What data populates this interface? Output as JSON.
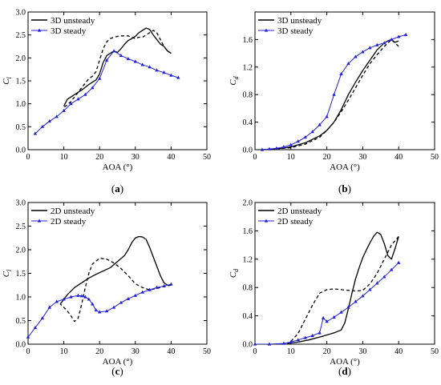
{
  "colors": {
    "unsteady": "#000000",
    "steady": "#1f1fdd",
    "frame": "#000000"
  },
  "chart_data": [
    {
      "type": "line",
      "panel": "a",
      "label_letter": "a",
      "xlabel": "AOA (°)",
      "ylabel_base": "C",
      "ylabel_sub": "l",
      "xlim": [
        0,
        50
      ],
      "ylim": [
        0,
        3.0
      ],
      "xticks": [
        0,
        10,
        20,
        30,
        40,
        50
      ],
      "xtick_labels": [
        "0",
        "10",
        "20",
        "30",
        "40",
        "50"
      ],
      "yticks": [
        0,
        0.5,
        1.0,
        1.5,
        2.0,
        2.5,
        3.0
      ],
      "ytick_labels": [
        "0.0",
        "0.5",
        "1.0",
        "1.5",
        "2.0",
        "2.5",
        "3.0"
      ],
      "legend": {
        "position": "top-left",
        "entries": [
          "3D unsteady",
          "3D steady"
        ]
      },
      "series": [
        {
          "name": "3D unsteady",
          "style": "solid",
          "color_key": "unsteady",
          "x": [
            10,
            11,
            13,
            15,
            17,
            19,
            20,
            21,
            22,
            23,
            24,
            25,
            26,
            27,
            28,
            29,
            30,
            31,
            32,
            33,
            34,
            35,
            36,
            37,
            38,
            39,
            40
          ],
          "y": [
            0.95,
            1.1,
            1.2,
            1.3,
            1.42,
            1.52,
            1.65,
            1.9,
            2.05,
            2.1,
            2.15,
            2.12,
            2.2,
            2.3,
            2.38,
            2.42,
            2.47,
            2.55,
            2.6,
            2.65,
            2.62,
            2.5,
            2.4,
            2.3,
            2.25,
            2.15,
            2.1
          ]
        },
        {
          "name": "",
          "style": "dashed",
          "color_key": "unsteady",
          "x": [
            40,
            39,
            38,
            37,
            36,
            35,
            34,
            33,
            32,
            31,
            30,
            29,
            28,
            27,
            26,
            25,
            24,
            23,
            22,
            21,
            20,
            19,
            18,
            17,
            16,
            15,
            14,
            13,
            12,
            11,
            10
          ],
          "y": [
            2.1,
            2.15,
            2.25,
            2.4,
            2.55,
            2.6,
            2.55,
            2.5,
            2.45,
            2.45,
            2.42,
            2.45,
            2.48,
            2.48,
            2.48,
            2.47,
            2.45,
            2.42,
            2.35,
            2.2,
            1.95,
            1.7,
            1.6,
            1.55,
            1.45,
            1.35,
            1.25,
            1.15,
            1.05,
            0.98,
            0.92
          ]
        },
        {
          "name": "3D steady",
          "style": "solid-marker",
          "color_key": "steady",
          "x": [
            2,
            4,
            6,
            8,
            10,
            12,
            14,
            16,
            18,
            20,
            22,
            24,
            26,
            28,
            30,
            32,
            34,
            36,
            38,
            40,
            42
          ],
          "y": [
            0.35,
            0.5,
            0.62,
            0.72,
            0.85,
            1.0,
            1.1,
            1.2,
            1.35,
            1.55,
            1.95,
            2.15,
            2.05,
            1.98,
            1.92,
            1.85,
            1.8,
            1.73,
            1.68,
            1.62,
            1.57
          ]
        }
      ]
    },
    {
      "type": "line",
      "panel": "b",
      "label_letter": "b",
      "xlabel": "AOA (°)",
      "ylabel_base": "C",
      "ylabel_sub": "d",
      "xlim": [
        0,
        50
      ],
      "ylim": [
        0,
        2.0
      ],
      "xticks": [
        0,
        10,
        20,
        30,
        40,
        50
      ],
      "xtick_labels": [
        "0",
        "10",
        "20",
        "30",
        "40",
        "50"
      ],
      "yticks": [
        0,
        0.4,
        0.8,
        1.2,
        1.6
      ],
      "ytick_labels": [
        "0.0",
        "0.4",
        "0.8",
        "1.2",
        "1.6"
      ],
      "legend": {
        "position": "top-left",
        "entries": [
          "3D unsteady",
          "3D steady"
        ]
      },
      "series": [
        {
          "name": "3D unsteady",
          "style": "solid",
          "color_key": "unsteady",
          "x": [
            2,
            6,
            10,
            14,
            18,
            20,
            22,
            24,
            26,
            28,
            30,
            32,
            34,
            36,
            37,
            38,
            39,
            40
          ],
          "y": [
            0.0,
            0.01,
            0.04,
            0.1,
            0.2,
            0.28,
            0.4,
            0.58,
            0.8,
            0.98,
            1.15,
            1.3,
            1.45,
            1.55,
            1.58,
            1.6,
            1.56,
            1.58
          ]
        },
        {
          "name": "",
          "style": "dashed",
          "color_key": "unsteady",
          "x": [
            40,
            39,
            38,
            37,
            36,
            34,
            32,
            30,
            28,
            26,
            24,
            22,
            20,
            18,
            14,
            10,
            6,
            2
          ],
          "y": [
            1.5,
            1.55,
            1.6,
            1.55,
            1.5,
            1.38,
            1.25,
            1.08,
            0.9,
            0.72,
            0.55,
            0.4,
            0.28,
            0.18,
            0.08,
            0.03,
            0.01,
            0.0
          ]
        },
        {
          "name": "3D steady",
          "style": "solid-marker",
          "color_key": "steady",
          "x": [
            2,
            4,
            6,
            8,
            10,
            12,
            14,
            16,
            18,
            20,
            22,
            24,
            26,
            28,
            30,
            32,
            34,
            36,
            38,
            40,
            42
          ],
          "y": [
            0.0,
            0.01,
            0.02,
            0.04,
            0.07,
            0.12,
            0.18,
            0.26,
            0.36,
            0.48,
            0.8,
            1.1,
            1.25,
            1.35,
            1.42,
            1.48,
            1.52,
            1.55,
            1.6,
            1.64,
            1.67
          ]
        }
      ]
    },
    {
      "type": "line",
      "panel": "c",
      "label_letter": "c",
      "xlabel": "AOA (°)",
      "ylabel_base": "C",
      "ylabel_sub": "l",
      "xlim": [
        0,
        50
      ],
      "ylim": [
        0,
        3.0
      ],
      "xticks": [
        0,
        10,
        20,
        30,
        40,
        50
      ],
      "xtick_labels": [
        "0",
        "10",
        "20",
        "30",
        "40",
        "50"
      ],
      "yticks": [
        0,
        0.5,
        1.0,
        1.5,
        2.0,
        2.5,
        3.0
      ],
      "ytick_labels": [
        "0.0",
        "0.5",
        "1.0",
        "1.5",
        "2.0",
        "2.5",
        "3.0"
      ],
      "legend": {
        "position": "top-left",
        "entries": [
          "2D unsteady",
          "2D steady"
        ]
      },
      "series": [
        {
          "name": "2D unsteady",
          "style": "solid",
          "color_key": "unsteady",
          "x": [
            9,
            11,
            13,
            15,
            17,
            19,
            21,
            23,
            25,
            27,
            28,
            29,
            30,
            31,
            32,
            33,
            34,
            35,
            36,
            37,
            38,
            39,
            40
          ],
          "y": [
            0.85,
            1.05,
            1.2,
            1.3,
            1.4,
            1.48,
            1.55,
            1.62,
            1.75,
            1.88,
            2.0,
            2.15,
            2.25,
            2.28,
            2.27,
            2.22,
            2.05,
            1.85,
            1.65,
            1.45,
            1.3,
            1.25,
            1.25
          ]
        },
        {
          "name": "",
          "style": "dashed",
          "color_key": "unsteady",
          "x": [
            40,
            38,
            36,
            34,
            32,
            30,
            28,
            26,
            24,
            22,
            20,
            18,
            17,
            16,
            15,
            14,
            13,
            12,
            11,
            10,
            9
          ],
          "y": [
            1.25,
            1.22,
            1.18,
            1.15,
            1.2,
            1.28,
            1.45,
            1.6,
            1.72,
            1.8,
            1.82,
            1.7,
            1.5,
            1.2,
            0.85,
            0.55,
            0.48,
            0.6,
            0.7,
            0.78,
            0.85
          ]
        },
        {
          "name": "2D steady",
          "style": "solid-marker",
          "color_key": "steady",
          "x": [
            0,
            2,
            4,
            6,
            8,
            10,
            12,
            14,
            15,
            16,
            17,
            18,
            19,
            20,
            22,
            24,
            26,
            28,
            30,
            32,
            34,
            36,
            38,
            40
          ],
          "y": [
            0.15,
            0.35,
            0.55,
            0.78,
            0.9,
            0.95,
            1.0,
            1.03,
            1.02,
            1.0,
            0.95,
            0.85,
            0.72,
            0.68,
            0.7,
            0.78,
            0.88,
            0.96,
            1.03,
            1.1,
            1.15,
            1.2,
            1.23,
            1.27
          ]
        }
      ]
    },
    {
      "type": "line",
      "panel": "d",
      "label_letter": "d",
      "xlabel": "AOA (°)",
      "ylabel_base": "C",
      "ylabel_sub": "d",
      "xlim": [
        0,
        50
      ],
      "ylim": [
        0,
        2.0
      ],
      "xticks": [
        0,
        10,
        20,
        30,
        40,
        50
      ],
      "xtick_labels": [
        "0",
        "10",
        "20",
        "30",
        "40",
        "50"
      ],
      "yticks": [
        0,
        0.4,
        0.8,
        1.2,
        1.6,
        2.0
      ],
      "ytick_labels": [
        "0.0",
        "0.4",
        "0.8",
        "1.2",
        "1.6",
        "2.0"
      ],
      "legend": {
        "position": "top-left",
        "entries": [
          "2D unsteady",
          "2D steady"
        ]
      },
      "series": [
        {
          "name": "2D unsteady",
          "style": "solid",
          "color_key": "unsteady",
          "x": [
            9,
            12,
            15,
            18,
            20,
            22,
            24,
            25,
            26,
            27,
            28,
            29,
            30,
            31,
            32,
            33,
            34,
            35,
            36,
            37,
            38,
            39,
            40
          ],
          "y": [
            0.01,
            0.03,
            0.06,
            0.1,
            0.13,
            0.16,
            0.2,
            0.3,
            0.5,
            0.72,
            0.92,
            1.08,
            1.22,
            1.33,
            1.43,
            1.52,
            1.58,
            1.55,
            1.42,
            1.25,
            1.2,
            1.35,
            1.52
          ]
        },
        {
          "name": "",
          "style": "dashed",
          "color_key": "unsteady",
          "x": [
            40,
            38,
            36,
            34,
            32,
            30,
            28,
            26,
            24,
            22,
            20,
            18,
            16,
            14,
            12,
            10,
            9
          ],
          "y": [
            1.52,
            1.4,
            1.2,
            1.0,
            0.85,
            0.76,
            0.75,
            0.76,
            0.77,
            0.78,
            0.77,
            0.72,
            0.55,
            0.35,
            0.15,
            0.04,
            0.01
          ]
        },
        {
          "name": "2D steady",
          "style": "solid-marker",
          "color_key": "steady",
          "x": [
            0,
            4,
            8,
            10,
            12,
            14,
            16,
            18,
            19,
            20,
            22,
            24,
            26,
            28,
            30,
            32,
            34,
            36,
            38,
            40
          ],
          "y": [
            0.0,
            0.0,
            0.01,
            0.03,
            0.06,
            0.09,
            0.12,
            0.16,
            0.37,
            0.32,
            0.38,
            0.45,
            0.52,
            0.6,
            0.68,
            0.77,
            0.86,
            0.95,
            1.05,
            1.15
          ]
        }
      ]
    }
  ]
}
